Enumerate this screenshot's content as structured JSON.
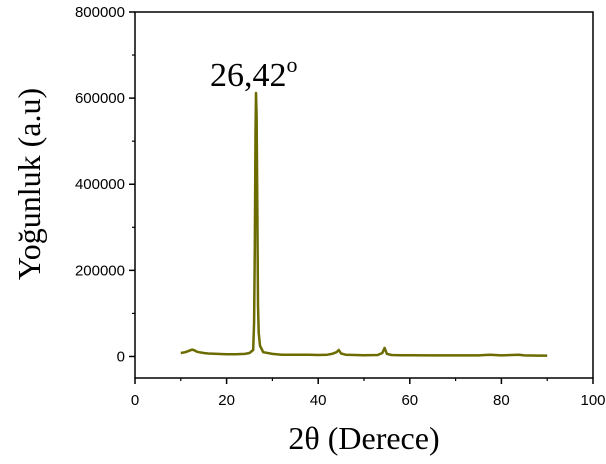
{
  "chart_data": {
    "type": "line",
    "xlabel": "2θ (Derece)",
    "ylabel": "Yoğunluk (a.u)",
    "xlim": [
      0,
      100
    ],
    "ylim": [
      -50000,
      800000
    ],
    "x_ticks": [
      0,
      20,
      40,
      60,
      80,
      100
    ],
    "y_ticks": [
      0,
      200000,
      400000,
      600000,
      800000
    ],
    "grid": false,
    "legend": "none",
    "annotation": {
      "text": "26,42",
      "superscript": "o",
      "x": 26.42,
      "y": 612000
    },
    "series": [
      {
        "color": "#6b6b00",
        "x": [
          10,
          11,
          12,
          12.5,
          13,
          13.5,
          14,
          15,
          16,
          18,
          20,
          22,
          24,
          25,
          25.8,
          26.0,
          26.15,
          26.3,
          26.42,
          26.55,
          26.7,
          26.85,
          27.0,
          27.3,
          28,
          30,
          32,
          35,
          38,
          40,
          42,
          43,
          44,
          44.5,
          45,
          46,
          48,
          50,
          53,
          54,
          54.5,
          55,
          56,
          58,
          60,
          65,
          70,
          75,
          77.5,
          80,
          83.8,
          85,
          88,
          90
        ],
        "y": [
          8000,
          10000,
          14000,
          16000,
          14000,
          11000,
          10000,
          8000,
          7000,
          6000,
          5000,
          5000,
          6000,
          8000,
          15000,
          80000,
          250000,
          520000,
          612000,
          560000,
          360000,
          120000,
          55000,
          25000,
          10000,
          6000,
          4000,
          4000,
          4000,
          3500,
          4000,
          6000,
          10000,
          15000,
          7000,
          4000,
          3500,
          3000,
          3500,
          8000,
          20000,
          6000,
          3500,
          3000,
          3000,
          2500,
          2500,
          2500,
          4000,
          2500,
          4000,
          2500,
          2000,
          2000
        ]
      }
    ]
  }
}
